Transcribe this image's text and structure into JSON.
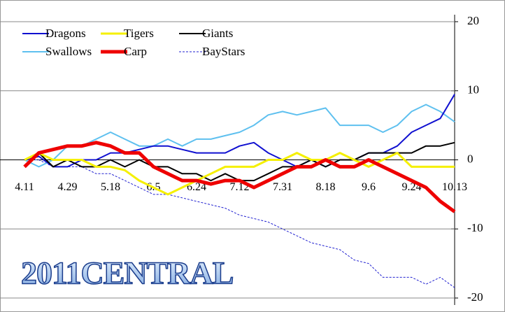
{
  "chart_data": {
    "type": "line",
    "title": "2011CENTRAL",
    "categories": [
      "4.11",
      null,
      null,
      "4.29",
      null,
      null,
      "5.18",
      null,
      null,
      "6.5",
      null,
      null,
      "6.24",
      null,
      null,
      "7.12",
      null,
      null,
      "7.31",
      null,
      null,
      "8.18",
      null,
      null,
      "9.6",
      null,
      null,
      "9.24",
      null,
      null,
      "10.13"
    ],
    "ylim": [
      -20,
      20
    ],
    "yticks": [
      20,
      10,
      0,
      -10,
      -20
    ],
    "grid": true,
    "legend": "top-left",
    "series": [
      {
        "name": "Dragons",
        "color": "#1010d0",
        "line_width": 2,
        "values": [
          0,
          0.5,
          -1,
          -1,
          0,
          0,
          1,
          1,
          1.5,
          2,
          2,
          1.5,
          1,
          1,
          1,
          2,
          2.5,
          1,
          0,
          -1,
          0,
          -1,
          0,
          0,
          1,
          1,
          2,
          4,
          5,
          6,
          9.5
        ]
      },
      {
        "name": "Tigers",
        "color": "#f5f000",
        "line_width": 3,
        "values": [
          0,
          1,
          0,
          0,
          0,
          -1,
          -1,
          -1.5,
          -3,
          -4,
          -5,
          -4,
          -3,
          -2,
          -1,
          -1,
          -1,
          0,
          0,
          1,
          0,
          0,
          1,
          0,
          -1,
          0,
          1,
          -1,
          -1,
          -1,
          -1
        ]
      },
      {
        "name": "Giants",
        "color": "#000000",
        "line_width": 2,
        "values": [
          0,
          1,
          -1,
          0,
          -1,
          -1,
          0,
          -1,
          0,
          -1,
          -1,
          -2,
          -2,
          -3,
          -2,
          -3,
          -3,
          -2,
          -1,
          -1,
          0,
          -1,
          0,
          0,
          1,
          1,
          1,
          1,
          2,
          2,
          2.5
        ]
      },
      {
        "name": "Swallows",
        "color": "#5ec0ef",
        "line_width": 2,
        "values": [
          0,
          -1,
          0,
          2,
          2,
          3,
          4,
          3,
          2,
          2,
          3,
          2,
          3,
          3,
          3.5,
          4,
          5,
          6.5,
          7,
          6.5,
          7,
          7.5,
          5,
          5,
          5,
          4,
          5,
          7,
          8,
          7,
          5.5
        ]
      },
      {
        "name": "Carp",
        "color": "#ee0000",
        "line_width": 5,
        "values": [
          -1,
          1,
          1.5,
          2,
          2,
          2.5,
          2,
          1,
          1,
          -1,
          -2,
          -3,
          -3,
          -3.5,
          -3,
          -3,
          -4,
          -3,
          -2,
          -1,
          -1,
          0,
          -1,
          -1,
          0,
          -1,
          -2,
          -3,
          -4,
          -6,
          -7.5
        ]
      },
      {
        "name": "BayStars",
        "color": "#2020d0",
        "line_width": 1,
        "dashed": true,
        "values": [
          0,
          0,
          -1,
          -1,
          -1,
          -2,
          -2,
          -3,
          -4,
          -5,
          -5,
          -5.5,
          -6,
          -6.5,
          -7,
          -8,
          -8.5,
          -9,
          -10,
          -11,
          -12,
          -12.5,
          -13,
          -14.5,
          -15,
          -17,
          -17,
          -17,
          -18,
          -17,
          -18.5
        ]
      }
    ]
  }
}
